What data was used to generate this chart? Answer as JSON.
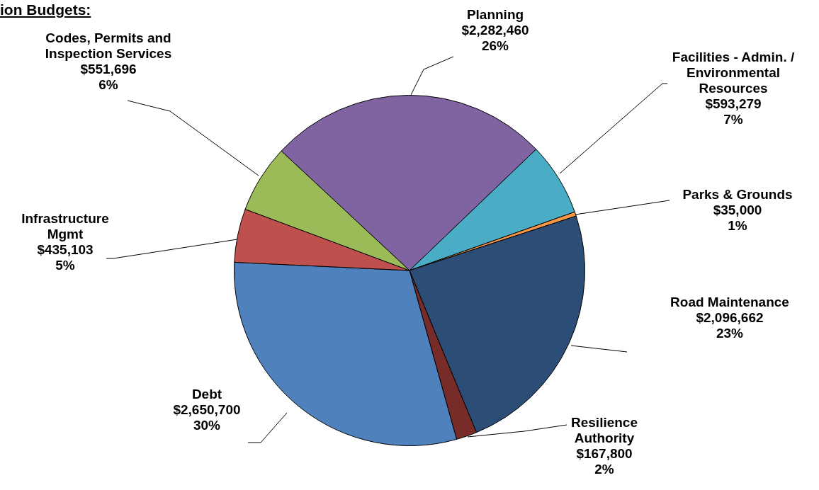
{
  "chart_data": {
    "type": "pie",
    "title": "ion Budgets:",
    "categories": [
      "Planning",
      "Facilities - Admin. / Environmental Resources",
      "Parks & Grounds",
      "Road Maintenance",
      "Resilience Authority",
      "Debt",
      "Infrastructure Mgmt",
      "Codes, Permits and Inspection Services"
    ],
    "values": [
      2282460,
      593279,
      35000,
      2096662,
      167800,
      2650700,
      435103,
      551696
    ],
    "colors": [
      "#8064a2",
      "#4bacc6",
      "#f79646",
      "#2c4d75",
      "#772c2a",
      "#4f81bd",
      "#c0504d",
      "#9bbb59"
    ],
    "value_labels": [
      "$2,282,460 26%",
      "$593,279 7%",
      "$35,000 1%",
      "$2,096,662 23%",
      "$167,800 2%",
      "$2,650,700 30%",
      "$435,103 5%",
      "$551,696 6%"
    ],
    "legend": false
  }
}
